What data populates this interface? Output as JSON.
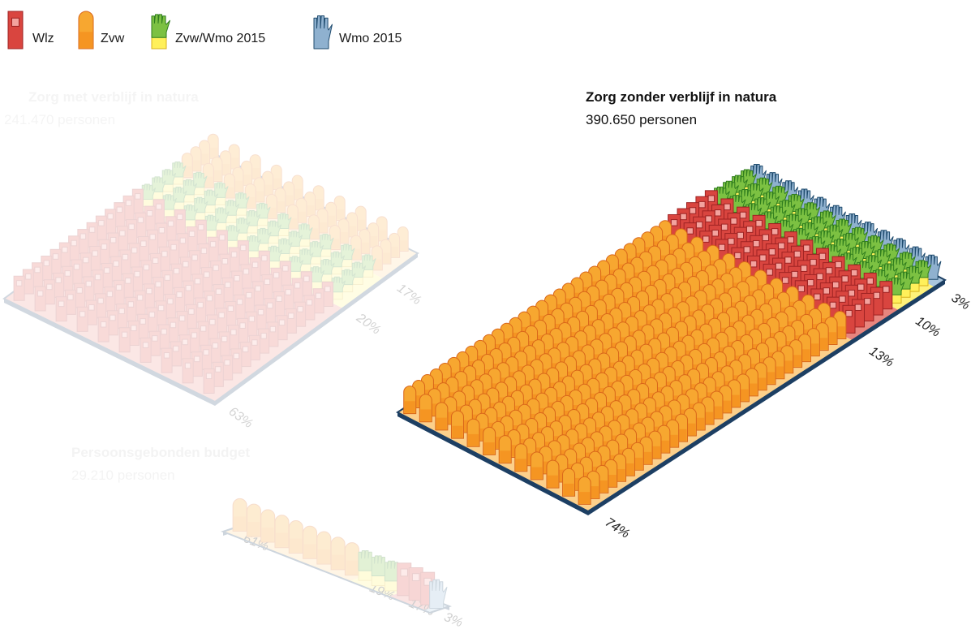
{
  "legend": [
    "Wlz",
    "Zvw",
    "Zvw/Wmo 2015",
    "Wmo 2015"
  ],
  "groups": [
    {
      "title": "Zorg met verblijf in natura",
      "subtitle": "241.470 personen",
      "segments": [
        {
          "name": "Wlz",
          "value": 63,
          "label": "63%"
        },
        {
          "name": "Zvw/Wmo 2015",
          "value": 20,
          "label": "20%"
        },
        {
          "name": "Zvw",
          "value": 17,
          "label": "17%"
        }
      ]
    },
    {
      "title": "Zorg zonder verblijf in natura",
      "subtitle": "390.650 personen",
      "segments": [
        {
          "name": "Zvw",
          "value": 74,
          "label": "74%"
        },
        {
          "name": "Wlz",
          "value": 13,
          "label": "13%"
        },
        {
          "name": "Zvw/Wmo 2015",
          "value": 10,
          "label": "10%"
        },
        {
          "name": "Wmo 2015",
          "value": 3,
          "label": "3%"
        }
      ]
    },
    {
      "title": "Persoonsgebonden budget",
      "subtitle": "29.210 personen",
      "segments": [
        {
          "name": "Zvw",
          "value": 61,
          "label": "61%"
        },
        {
          "name": "Zvw/Wmo 2015",
          "value": 19,
          "label": "19%"
        },
        {
          "name": "Wlz",
          "value": 17,
          "label": "17%"
        },
        {
          "name": "Wmo 2015",
          "value": 3,
          "label": "3%"
        }
      ]
    }
  ]
}
